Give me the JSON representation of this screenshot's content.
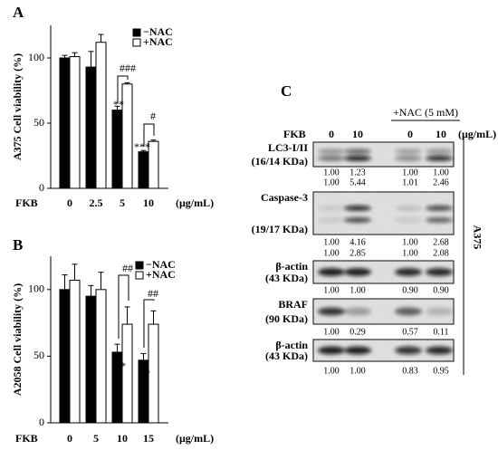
{
  "chart_data": [
    {
      "type": "bar",
      "panel": "A",
      "ylabel": "A375 Cell viability (%)",
      "x_label": "FKB",
      "x_unit": "(μg/mL)",
      "categories": [
        "0",
        "2.5",
        "5",
        "10"
      ],
      "series": [
        {
          "name": "−NAC",
          "color": "#000000",
          "values": [
            100,
            93,
            60,
            28
          ],
          "errors": [
            2,
            12,
            3,
            1
          ]
        },
        {
          "name": "+NAC",
          "color": "#ffffff",
          "values": [
            101,
            112,
            80,
            36
          ],
          "errors": [
            3,
            6,
            1,
            1
          ]
        }
      ],
      "ylim": [
        0,
        125
      ],
      "yticks": [
        0,
        50,
        100
      ],
      "legend": "upper right",
      "annotations": [
        "**",
        "***",
        "###",
        "#"
      ]
    },
    {
      "type": "bar",
      "panel": "B",
      "ylabel": "A2058 Cell viability (%)",
      "x_label": "FKB",
      "x_unit": "(μg/mL)",
      "categories": [
        "0",
        "5",
        "10",
        "15"
      ],
      "series": [
        {
          "name": "−NAC",
          "color": "#000000",
          "values": [
            100,
            95,
            53,
            47
          ],
          "errors": [
            11,
            8,
            6,
            5
          ]
        },
        {
          "name": "+NAC",
          "color": "#ffffff",
          "values": [
            107,
            100,
            74,
            74
          ],
          "errors": [
            12,
            13,
            13,
            10
          ]
        }
      ],
      "ylim": [
        0,
        125
      ],
      "yticks": [
        0,
        50,
        100
      ],
      "legend": "upper right",
      "annotations": [
        "**",
        "**",
        "##",
        "##"
      ]
    }
  ],
  "blot": {
    "panel": "C",
    "treatment": "+NAC (5 mM)",
    "row_label": "FKB",
    "columns": [
      "0",
      "10",
      "0",
      "10"
    ],
    "unit": "(μg/mL)",
    "cell_line": "A375",
    "rows": [
      {
        "label": "LC3-I/II",
        "size": "(16/14 KDa)",
        "quant": [
          [
            "1.00",
            "1.23",
            "1.00",
            "1.00"
          ],
          [
            "1.00",
            "5.44",
            "1.01",
            "2.46"
          ]
        ]
      },
      {
        "label": "Caspase-3",
        "size": "(19/17 KDa)",
        "quant": [
          [
            "1.00",
            "4.16",
            "1.00",
            "2.68"
          ],
          [
            "1.00",
            "2.85",
            "1.00",
            "2.08"
          ]
        ]
      },
      {
        "label": "β-actin",
        "size": "(43 KDa)",
        "quant": [
          [
            "1.00",
            "1.00",
            "0.90",
            "0.90"
          ]
        ]
      },
      {
        "label": "BRAF",
        "size": "(90 KDa)",
        "quant": [
          [
            "1.00",
            "0.29",
            "0.57",
            "0.11"
          ]
        ]
      },
      {
        "label": "β-actin",
        "size": "(43 KDa)",
        "quant": [
          [
            "1.00",
            "1.00",
            "0.83",
            "0.95"
          ]
        ]
      }
    ]
  }
}
